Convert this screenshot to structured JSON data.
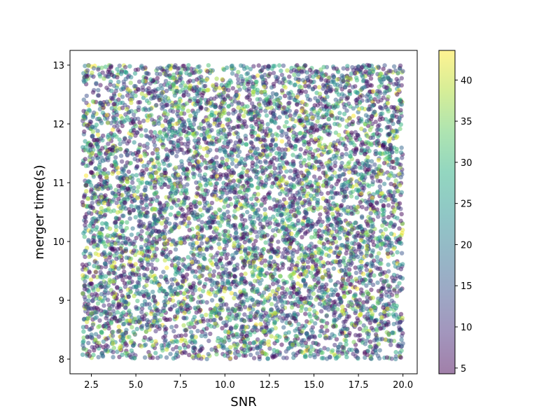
{
  "chart_data": {
    "type": "scatter",
    "title": "",
    "xlabel": "SNR",
    "ylabel": "merger time(s)",
    "xlim": [
      1.3,
      20.8
    ],
    "ylim": [
      7.75,
      13.25
    ],
    "x_ticks": [
      2.5,
      5.0,
      7.5,
      10.0,
      12.5,
      15.0,
      17.5,
      20.0
    ],
    "x_tick_labels": [
      "2.5",
      "5.0",
      "7.5",
      "10.0",
      "12.5",
      "15.0",
      "17.5",
      "20.0"
    ],
    "y_ticks": [
      8,
      9,
      10,
      11,
      12,
      13
    ],
    "y_tick_labels": [
      "8",
      "9",
      "10",
      "11",
      "12",
      "13"
    ],
    "grid": false,
    "marker_alpha": 0.5,
    "colormap": "viridis",
    "colormap_stops": [
      "#440154",
      "#472d7b",
      "#3b528b",
      "#2c728e",
      "#21918c",
      "#28ae80",
      "#5ec962",
      "#addc30",
      "#fde725"
    ],
    "colorbar": {
      "range": [
        4.3,
        43.6
      ],
      "ticks": [
        5,
        10,
        15,
        20,
        25,
        30,
        35,
        40
      ],
      "tick_labels": [
        "5",
        "10",
        "15",
        "20",
        "25",
        "30",
        "35",
        "40"
      ]
    },
    "points": {
      "count": 7000,
      "x_range": [
        2.0,
        20.0
      ],
      "y_range": [
        8.0,
        13.0
      ],
      "color_range": [
        4.3,
        43.6
      ],
      "distribution": "uniform in x and y; color values skewed toward low end"
    }
  }
}
